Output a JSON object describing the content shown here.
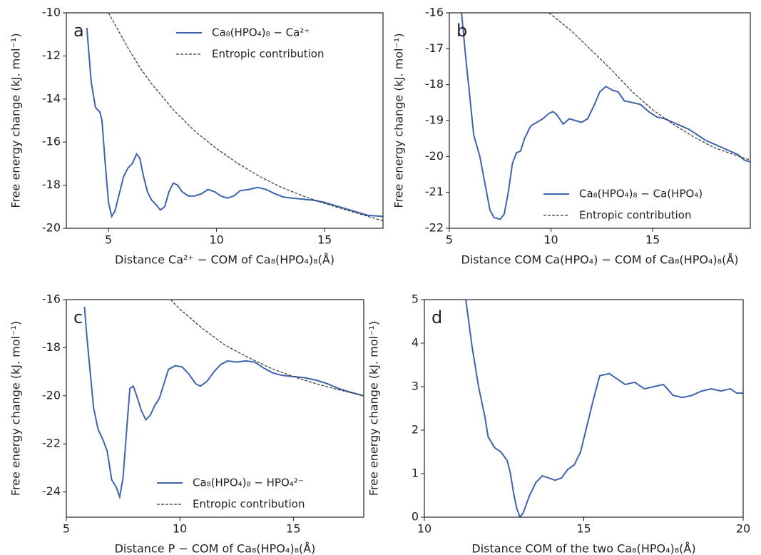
{
  "chart_data": [
    {
      "type": "line",
      "label": "a",
      "x_label": "Distance Ca²⁺ − COM of Ca₈(HPO₄)₈(Å)",
      "y_label": "Free energy change (kJ. mol⁻¹)",
      "xlim": [
        3.05,
        17.7
      ],
      "xticks": [
        5,
        10,
        15
      ],
      "ylim": [
        -20,
        -10
      ],
      "yticks": [
        -10,
        -12,
        -14,
        -16,
        -18,
        -20
      ],
      "legend": "upper right",
      "series": [
        {
          "name": "Ca₈(HPO₄)₈ − Ca²⁺",
          "color": "#3f63b0",
          "style": "solid",
          "x": [
            4.0,
            4.2,
            4.4,
            4.6,
            4.7,
            4.85,
            5.0,
            5.15,
            5.3,
            5.5,
            5.7,
            5.9,
            6.1,
            6.3,
            6.45,
            6.6,
            6.8,
            7.0,
            7.2,
            7.4,
            7.6,
            7.8,
            8.0,
            8.2,
            8.4,
            8.7,
            9.0,
            9.3,
            9.6,
            9.9,
            10.2,
            10.5,
            10.8,
            11.1,
            11.5,
            11.9,
            12.3,
            12.7,
            13.1,
            13.5,
            14.0,
            14.5,
            15.0,
            15.5,
            16.0,
            16.5,
            17.0,
            17.7
          ],
          "values": [
            -10.7,
            -13.2,
            -14.4,
            -14.6,
            -15.0,
            -17.0,
            -18.8,
            -19.45,
            -19.2,
            -18.4,
            -17.6,
            -17.2,
            -17.0,
            -16.55,
            -16.75,
            -17.5,
            -18.3,
            -18.7,
            -18.9,
            -19.15,
            -19.0,
            -18.3,
            -17.9,
            -18.0,
            -18.3,
            -18.5,
            -18.5,
            -18.4,
            -18.2,
            -18.3,
            -18.5,
            -18.6,
            -18.5,
            -18.25,
            -18.2,
            -18.1,
            -18.2,
            -18.4,
            -18.55,
            -18.6,
            -18.65,
            -18.7,
            -18.8,
            -18.95,
            -19.1,
            -19.25,
            -19.4,
            -19.45
          ]
        },
        {
          "name": "Entropic contribution",
          "color": "#333333",
          "style": "dashed",
          "x": [
            5.0,
            5.5,
            6.0,
            6.5,
            7.0,
            7.5,
            8.0,
            8.5,
            9.0,
            9.5,
            10.0,
            11.0,
            12.0,
            13.0,
            14.0,
            15.0,
            16.0,
            17.0,
            17.7
          ],
          "values": [
            -10.0,
            -10.9,
            -11.8,
            -12.6,
            -13.3,
            -13.9,
            -14.5,
            -15.0,
            -15.5,
            -15.9,
            -16.3,
            -17.0,
            -17.6,
            -18.1,
            -18.5,
            -18.85,
            -19.15,
            -19.45,
            -19.65
          ]
        }
      ]
    },
    {
      "type": "line",
      "label": "b",
      "x_label": "Distance COM Ca(HPO₄) − COM of Ca₈(HPO₄)₈(Å)",
      "y_label": "Free energy change (kJ. mol⁻¹)",
      "xlim": [
        5,
        19.8
      ],
      "xticks": [
        5,
        10,
        15
      ],
      "ylim": [
        -22,
        -16
      ],
      "yticks": [
        -16,
        -17,
        -18,
        -19,
        -20,
        -21,
        -22
      ],
      "legend": "lower right",
      "series": [
        {
          "name": "Ca₈(HPO₄)₈ − Ca(HPO₄)",
          "color": "#3f63b0",
          "style": "solid",
          "x": [
            5.6,
            5.8,
            6.0,
            6.2,
            6.5,
            6.8,
            7.0,
            7.2,
            7.5,
            7.7,
            7.9,
            8.1,
            8.3,
            8.5,
            8.7,
            9.0,
            9.3,
            9.6,
            9.9,
            10.1,
            10.3,
            10.6,
            10.9,
            11.2,
            11.5,
            11.8,
            12.1,
            12.4,
            12.7,
            13.0,
            13.3,
            13.6,
            14.0,
            14.4,
            14.8,
            15.2,
            15.6,
            16.0,
            16.4,
            16.8,
            17.2,
            17.6,
            18.0,
            18.4,
            18.8,
            19.2,
            19.5,
            19.8
          ],
          "values": [
            -16.0,
            -17.2,
            -18.3,
            -19.4,
            -20.0,
            -20.9,
            -21.5,
            -21.7,
            -21.75,
            -21.6,
            -21.0,
            -20.2,
            -19.9,
            -19.85,
            -19.5,
            -19.15,
            -19.05,
            -18.95,
            -18.8,
            -18.75,
            -18.85,
            -19.1,
            -18.95,
            -19.0,
            -19.05,
            -18.95,
            -18.6,
            -18.2,
            -18.05,
            -18.15,
            -18.2,
            -18.45,
            -18.5,
            -18.55,
            -18.75,
            -18.9,
            -18.95,
            -19.05,
            -19.15,
            -19.25,
            -19.4,
            -19.55,
            -19.65,
            -19.75,
            -19.85,
            -19.95,
            -20.1,
            -20.15
          ]
        },
        {
          "name": "Entropic contribution",
          "color": "#333333",
          "style": "dashed",
          "x": [
            9.9,
            11.0,
            12.0,
            13.0,
            14.0,
            15.0,
            16.0,
            17.0,
            18.0,
            19.0,
            19.8
          ],
          "values": [
            -16.0,
            -16.5,
            -17.05,
            -17.6,
            -18.2,
            -18.7,
            -19.1,
            -19.45,
            -19.75,
            -19.95,
            -20.1
          ]
        }
      ]
    },
    {
      "type": "line",
      "label": "c",
      "x_label": "Distance P − COM of Ca₈(HPO₄)₈(Å)",
      "y_label": "Free energy change (kJ. mol⁻¹)",
      "xlim": [
        5,
        18.1
      ],
      "xticks": [
        5,
        10,
        15
      ],
      "ylim": [
        -25.05,
        -16
      ],
      "yticks": [
        -16,
        -18,
        -20,
        -22,
        -24
      ],
      "legend": "lower right",
      "series": [
        {
          "name": "Ca₈(HPO₄)₈ − HPO₄²⁻",
          "color": "#3f63b0",
          "style": "solid",
          "x": [
            5.8,
            5.9,
            6.05,
            6.2,
            6.4,
            6.6,
            6.8,
            7.0,
            7.2,
            7.35,
            7.5,
            7.65,
            7.8,
            7.95,
            8.1,
            8.3,
            8.5,
            8.7,
            8.9,
            9.1,
            9.3,
            9.5,
            9.8,
            10.1,
            10.4,
            10.7,
            10.9,
            11.2,
            11.5,
            11.8,
            12.1,
            12.5,
            12.9,
            13.3,
            13.7,
            14.1,
            14.5,
            15.0,
            15.5,
            16.0,
            16.5,
            17.0,
            17.5,
            18.1
          ],
          "values": [
            -16.3,
            -17.5,
            -19.0,
            -20.5,
            -21.4,
            -21.8,
            -22.3,
            -23.5,
            -23.8,
            -24.2,
            -23.4,
            -21.5,
            -19.7,
            -19.6,
            -20.0,
            -20.6,
            -21.0,
            -20.8,
            -20.4,
            -20.1,
            -19.5,
            -18.9,
            -18.75,
            -18.8,
            -19.1,
            -19.5,
            -19.6,
            -19.4,
            -19.0,
            -18.7,
            -18.55,
            -18.6,
            -18.55,
            -18.6,
            -18.85,
            -19.05,
            -19.15,
            -19.2,
            -19.25,
            -19.35,
            -19.5,
            -19.7,
            -19.85,
            -20.0
          ]
        },
        {
          "name": "Entropic contribution",
          "color": "#333333",
          "style": "dashed",
          "x": [
            9.6,
            10.0,
            11.0,
            12.0,
            13.0,
            14.0,
            15.0,
            16.0,
            17.0,
            18.1
          ],
          "values": [
            -16.0,
            -16.4,
            -17.2,
            -17.9,
            -18.4,
            -18.85,
            -19.2,
            -19.5,
            -19.75,
            -20.0
          ]
        }
      ]
    },
    {
      "type": "line",
      "label": "d",
      "x_label": "Distance COM of the two Ca₈(HPO₄)₈(Å)",
      "y_label": "Free energy change (kJ. mol⁻¹)",
      "xlim": [
        10,
        20
      ],
      "xticks": [
        10,
        15,
        20
      ],
      "ylim": [
        0,
        5
      ],
      "yticks": [
        0,
        1,
        2,
        3,
        4,
        5
      ],
      "series": [
        {
          "color": "#3f63b0",
          "style": "solid",
          "x": [
            11.3,
            11.5,
            11.7,
            11.9,
            12.0,
            12.2,
            12.4,
            12.6,
            12.7,
            12.8,
            12.9,
            13.0,
            13.1,
            13.3,
            13.5,
            13.7,
            13.9,
            14.1,
            14.3,
            14.5,
            14.7,
            14.9,
            15.1,
            15.3,
            15.5,
            15.8,
            16.0,
            16.3,
            16.6,
            16.9,
            17.2,
            17.5,
            17.8,
            18.1,
            18.4,
            18.7,
            19.0,
            19.3,
            19.6,
            19.8,
            20.0
          ],
          "values": [
            5.0,
            3.9,
            3.0,
            2.3,
            1.85,
            1.6,
            1.5,
            1.3,
            1.0,
            0.55,
            0.2,
            0.0,
            0.1,
            0.5,
            0.8,
            0.95,
            0.9,
            0.85,
            0.9,
            1.1,
            1.2,
            1.5,
            2.1,
            2.7,
            3.25,
            3.3,
            3.2,
            3.05,
            3.1,
            2.95,
            3.0,
            3.05,
            2.8,
            2.75,
            2.8,
            2.9,
            2.95,
            2.9,
            2.95,
            2.85,
            2.85
          ]
        }
      ]
    }
  ]
}
